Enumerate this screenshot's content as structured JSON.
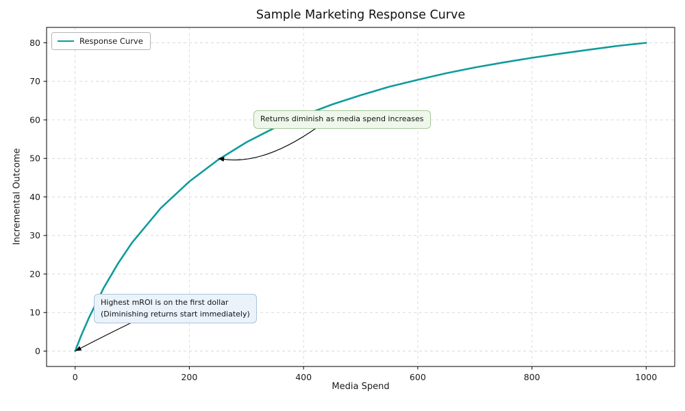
{
  "chart_data": {
    "type": "line",
    "title": "Sample Marketing Response Curve",
    "xlabel": "Media Spend",
    "ylabel": "Incremental Outcome",
    "xlim": [
      -50,
      1050
    ],
    "ylim": [
      -4,
      84
    ],
    "xticks": [
      0,
      200,
      400,
      600,
      800,
      1000
    ],
    "yticks": [
      0,
      10,
      20,
      30,
      40,
      50,
      60,
      70,
      80
    ],
    "grid": true,
    "grid_style": "dashed",
    "legend_position": "upper left",
    "series": [
      {
        "name": "Response Curve",
        "color": "#0f9b9b",
        "x": [
          0,
          10,
          25,
          50,
          75,
          100,
          150,
          200,
          250,
          300,
          350,
          400,
          450,
          500,
          550,
          600,
          650,
          700,
          750,
          800,
          850,
          900,
          950,
          1000
        ],
        "y": [
          0,
          3.8,
          8.9,
          16.4,
          22.7,
          28.2,
          37.1,
          44.0,
          49.6,
          54.2,
          58.0,
          61.2,
          64.0,
          66.4,
          68.6,
          70.4,
          72.1,
          73.6,
          74.9,
          76.1,
          77.2,
          78.2,
          79.2,
          80.0
        ]
      }
    ],
    "annotations": [
      {
        "text": "Returns diminish as media spend increases",
        "target_xy": [
          250,
          50
        ],
        "box_fill": "#eff7ea",
        "box_border": "#a5c79a"
      },
      {
        "text": "Highest mROI is on the first dollar\n(Diminishing returns start immediately)",
        "target_xy": [
          0,
          0
        ],
        "box_fill": "#ebf3fa",
        "box_border": "#a9c3da"
      }
    ]
  }
}
